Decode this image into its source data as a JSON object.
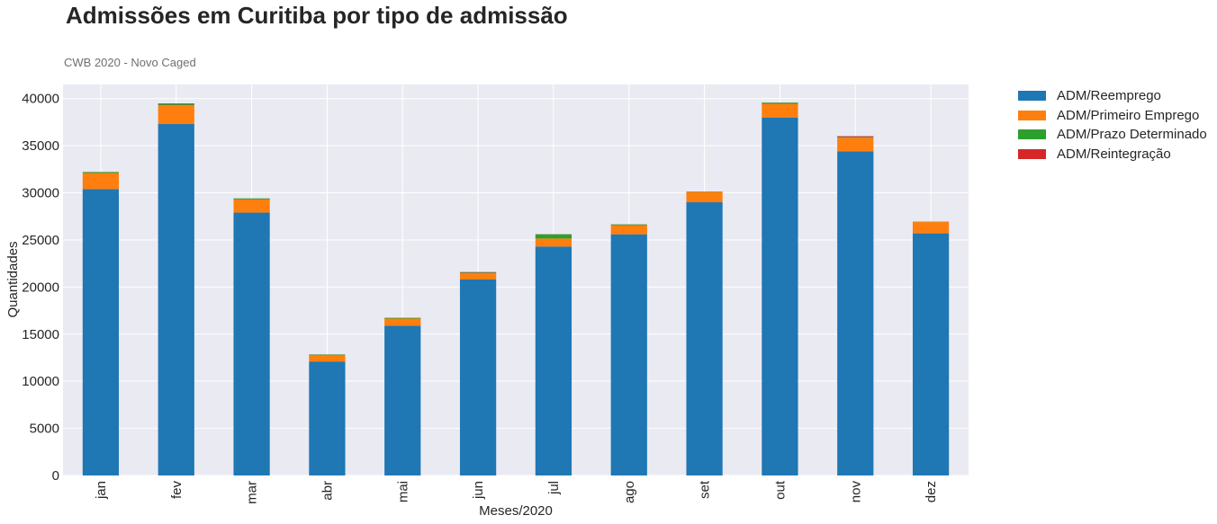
{
  "header": {
    "title": "Admissões em Curitiba por tipo de admissão",
    "subtitle": "CWB 2020 - Novo Caged"
  },
  "chart_data": {
    "type": "bar",
    "stacked": true,
    "title": "Admissões em Curitiba por tipo de admissão",
    "subtitle": "CWB 2020 - Novo Caged",
    "xlabel": "Meses/2020",
    "ylabel": "Quantidades",
    "ylim": [
      0,
      41500
    ],
    "yticks": [
      0,
      5000,
      10000,
      15000,
      20000,
      25000,
      30000,
      35000,
      40000
    ],
    "grid": true,
    "legend_position": "outside-top-right",
    "categories": [
      "jan",
      "fev",
      "mar",
      "abr",
      "mai",
      "jun",
      "jul",
      "ago",
      "set",
      "out",
      "nov",
      "dez"
    ],
    "series": [
      {
        "name": "ADM/Reemprego",
        "color": "#1f77b4",
        "values": [
          30400,
          37300,
          27900,
          12100,
          15900,
          20800,
          24300,
          25600,
          29000,
          38000,
          34400,
          25700
        ]
      },
      {
        "name": "ADM/Primeiro Emprego",
        "color": "#ff7f0e",
        "values": [
          1700,
          2000,
          1400,
          650,
          750,
          650,
          850,
          950,
          1100,
          1450,
          1450,
          1200
        ]
      },
      {
        "name": "ADM/Prazo Determinado",
        "color": "#2ca02c",
        "values": [
          100,
          100,
          100,
          80,
          80,
          80,
          450,
          100,
          30,
          120,
          60,
          30
        ]
      },
      {
        "name": "ADM/Reintegração",
        "color": "#d62728",
        "values": [
          10,
          80,
          10,
          10,
          10,
          60,
          10,
          10,
          10,
          10,
          100,
          10
        ]
      }
    ]
  }
}
